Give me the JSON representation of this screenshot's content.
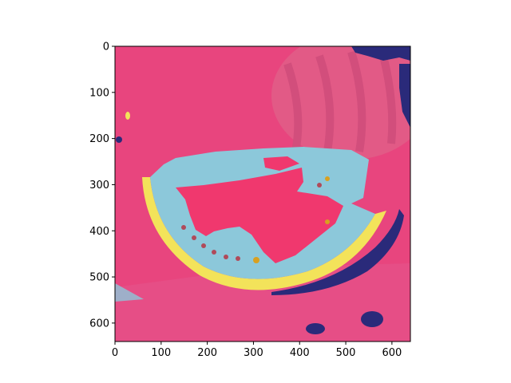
{
  "figure": {
    "image_description": "segmentation overlay of a watermelon slice on a cutting board",
    "colors": {
      "background_pink": "#e8457e",
      "light_pink": "#f06a98",
      "region_blue": "#8cc8da",
      "flesh_red": "#f0386e",
      "rind_yellow": "#f3e35a",
      "shadow_navy": "#2a2a7a",
      "axes_frame": "#000000"
    },
    "x_axis": {
      "ticks": [
        {
          "value": 0,
          "label": "0"
        },
        {
          "value": 100,
          "label": "100"
        },
        {
          "value": 200,
          "label": "200"
        },
        {
          "value": 300,
          "label": "300"
        },
        {
          "value": 400,
          "label": "400"
        },
        {
          "value": 500,
          "label": "500"
        },
        {
          "value": 600,
          "label": "600"
        }
      ],
      "range": [
        0,
        640
      ]
    },
    "y_axis": {
      "ticks": [
        {
          "value": 0,
          "label": "0"
        },
        {
          "value": 100,
          "label": "100"
        },
        {
          "value": 200,
          "label": "200"
        },
        {
          "value": 300,
          "label": "300"
        },
        {
          "value": 400,
          "label": "400"
        },
        {
          "value": 500,
          "label": "500"
        },
        {
          "value": 600,
          "label": "600"
        }
      ],
      "range": [
        0,
        640
      ],
      "inverted": true
    }
  }
}
